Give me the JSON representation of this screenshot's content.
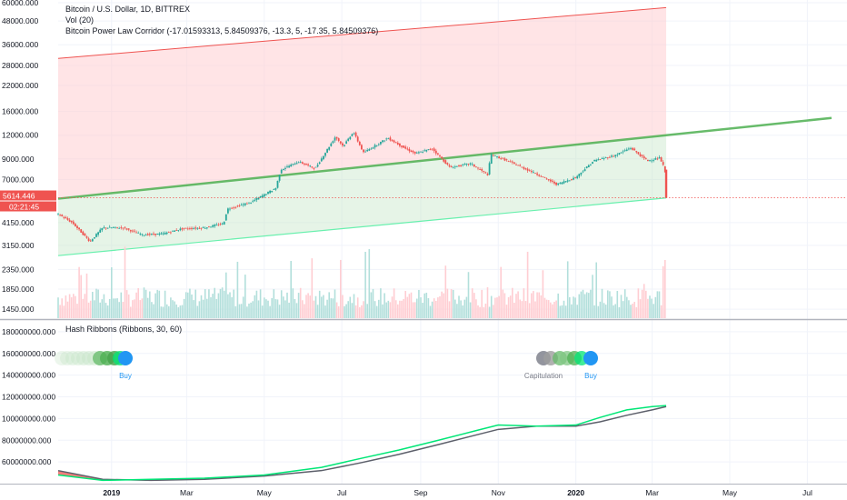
{
  "header": {
    "title": "Bitcoin / U.S. Dollar, 1D, BITTREX",
    "vol_label": "Vol (20)",
    "corridor_label": "Bitcoin Power Law Corridor (-17.01593313, 5.84509376, -13.3, 5, -17.35, 5.84509376)",
    "hash_label": "Hash Ribbons (Ribbons, 30, 60)"
  },
  "price_axis": {
    "ticks": [
      "60000.000",
      "48000.000",
      "36000.000",
      "28000.000",
      "22000.000",
      "16000.000",
      "12000.000",
      "9000.000",
      "7000.000",
      "4150.000",
      "3150.000",
      "2350.000",
      "1850.000",
      "1450.000"
    ]
  },
  "hash_axis": {
    "ticks": [
      "180000000.000",
      "160000000.000",
      "140000000.000",
      "120000000.000",
      "100000000.000",
      "80000000.000",
      "60000000.000"
    ]
  },
  "time_axis": {
    "labels": [
      "2019",
      "Mar",
      "May",
      "Jul",
      "Sep",
      "Nov",
      "2020",
      "Mar",
      "May",
      "Jul"
    ]
  },
  "last_price": {
    "price": "5614.446",
    "countdown": "02:21:45"
  },
  "signals": [
    {
      "text": "Buy",
      "kind": "buy"
    },
    {
      "text": "Capitulation",
      "kind": "capitulation"
    },
    {
      "text": "Buy",
      "kind": "buy"
    }
  ],
  "colors": {
    "up": "#26a69a",
    "down": "#ef5350",
    "corridor_upper": "#ef5350",
    "corridor_mid": "#4caf50",
    "corridor_lower": "#69f0ae",
    "hash_fast": "#00e676",
    "hash_slow": "#5d606b",
    "buy": "#2196f3"
  },
  "chart_data": {
    "type": "line",
    "title": "Bitcoin / U.S. Dollar, 1D, BITTREX",
    "yscale": "log",
    "ylim": [
      1300,
      62000
    ],
    "price_series": {
      "name": "BTCUSD close",
      "x": [
        "2018-11-20",
        "2018-12-01",
        "2018-12-15",
        "2018-12-25",
        "2019-01-10",
        "2019-01-25",
        "2019-02-10",
        "2019-02-25",
        "2019-03-15",
        "2019-03-30",
        "2019-04-02",
        "2019-04-20",
        "2019-05-10",
        "2019-05-14",
        "2019-05-28",
        "2019-06-10",
        "2019-06-26",
        "2019-07-02",
        "2019-07-10",
        "2019-07-18",
        "2019-08-06",
        "2019-08-20",
        "2019-08-28",
        "2019-09-10",
        "2019-09-24",
        "2019-10-10",
        "2019-10-24",
        "2019-10-26",
        "2019-11-08",
        "2019-11-20",
        "2019-12-01",
        "2019-12-17",
        "2020-01-01",
        "2020-01-15",
        "2020-02-01",
        "2020-02-13",
        "2020-02-26",
        "2020-03-07",
        "2020-03-11",
        "2020-03-12"
      ],
      "y": [
        4600,
        4150,
        3300,
        3900,
        3900,
        3580,
        3620,
        3850,
        3900,
        4100,
        4900,
        5300,
        6300,
        7900,
        8700,
        8000,
        11800,
        10500,
        12500,
        9700,
        11600,
        10200,
        9600,
        10200,
        8100,
        8500,
        7400,
        9500,
        8800,
        8100,
        7500,
        6600,
        7200,
        8800,
        9400,
        10300,
        8800,
        9100,
        7900,
        5614
      ]
    },
    "corridor": [
      {
        "name": "upper",
        "x": [
          "2018-11-20",
          "2020-03-12"
        ],
        "y": [
          30500,
          56500
        ]
      },
      {
        "name": "middle",
        "x": [
          "2018-11-20",
          "2020-03-12",
          "2020-07-20"
        ],
        "y": [
          5550,
          12000,
          14800
        ]
      },
      {
        "name": "lower",
        "x": [
          "2018-11-20",
          "2020-03-12"
        ],
        "y": [
          2780,
          5600
        ]
      }
    ],
    "hash_series": [
      {
        "name": "fast",
        "x": [
          "2018-11-20",
          "2018-12-25",
          "2019-02-01",
          "2019-03-15",
          "2019-05-01",
          "2019-06-15",
          "2019-07-15",
          "2019-08-15",
          "2019-09-15",
          "2019-10-15",
          "2019-11-01",
          "2019-12-01",
          "2020-01-01",
          "2020-01-20",
          "2020-02-10",
          "2020-03-01",
          "2020-03-12"
        ],
        "y": [
          48000000,
          43000000,
          44000000,
          45000000,
          48000000,
          55000000,
          63000000,
          71000000,
          80000000,
          89000000,
          94000000,
          93000000,
          94000000,
          101000000,
          108000000,
          111000000,
          112000000
        ]
      },
      {
        "name": "slow",
        "x": [
          "2018-11-20",
          "2018-12-25",
          "2019-02-01",
          "2019-03-15",
          "2019-05-01",
          "2019-06-15",
          "2019-07-15",
          "2019-08-15",
          "2019-09-15",
          "2019-10-15",
          "2019-11-01",
          "2019-12-01",
          "2020-01-01",
          "2020-01-20",
          "2020-02-10",
          "2020-03-01",
          "2020-03-12"
        ],
        "y": [
          52000000,
          44000000,
          43000000,
          44000000,
          47000000,
          52000000,
          59000000,
          67000000,
          76000000,
          85000000,
          90000000,
          93000000,
          93000000,
          97000000,
          103000000,
          108000000,
          111000000
        ]
      }
    ]
  }
}
